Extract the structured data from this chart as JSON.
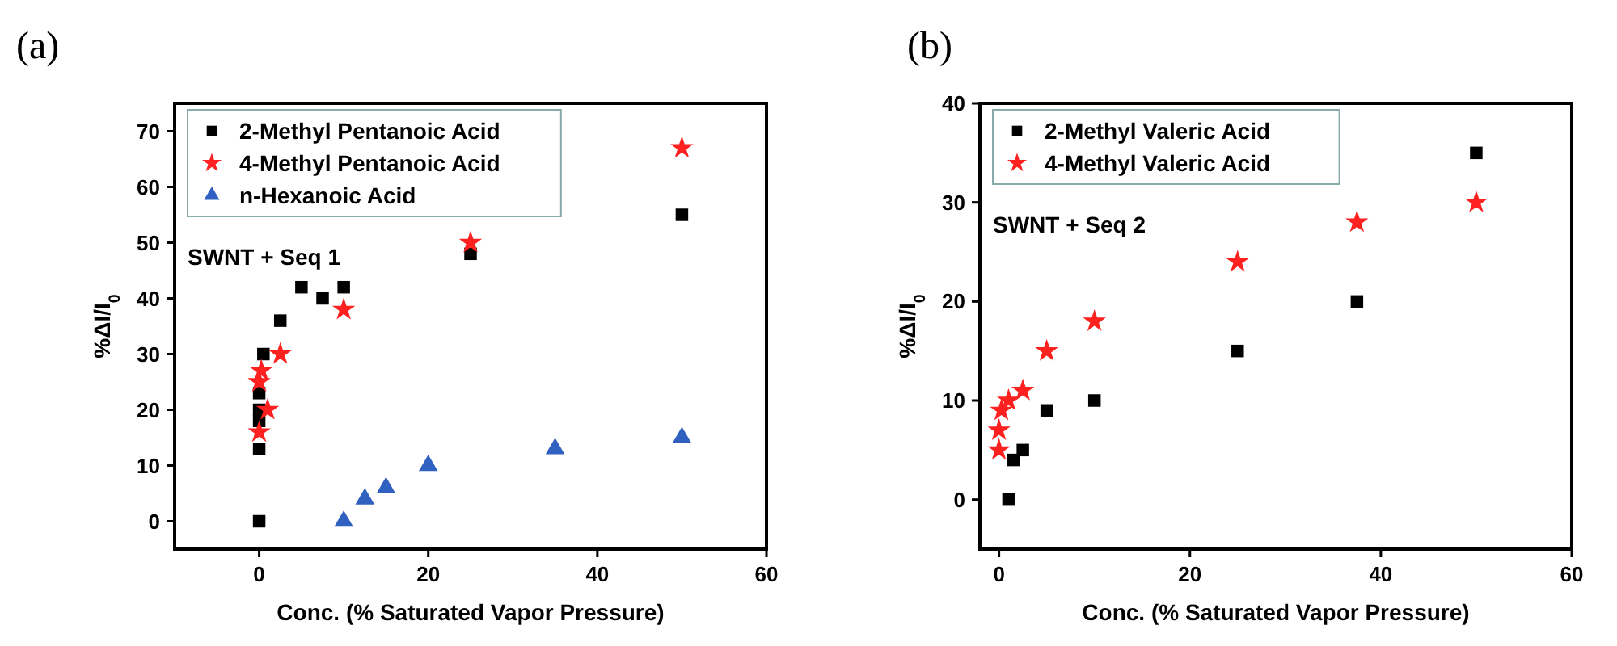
{
  "chart_data": [
    {
      "type": "scatter",
      "title": "(a)",
      "xlabel": "Conc. (% Saturated Vapor Pressure)",
      "ylabel": "%ΔI/I$_{0}$",
      "annotations": [
        "SWNT + Seq 1"
      ],
      "xlim": [
        -10,
        60
      ],
      "ylim": [
        -5,
        75
      ],
      "xticks": [
        0,
        20,
        40,
        60
      ],
      "yticks": [
        0,
        10,
        20,
        30,
        40,
        50,
        60,
        70
      ],
      "legend": "top left",
      "series": [
        {
          "name": "2-Methyl Pentanoic Acid",
          "color": "#000000",
          "marker": "square",
          "x": [
            0,
            0,
            0,
            0,
            0,
            0.5,
            2.5,
            5,
            7.5,
            10,
            25,
            50
          ],
          "values": [
            0,
            13,
            18,
            20,
            23,
            30,
            36,
            42,
            40,
            42,
            48,
            55
          ]
        },
        {
          "name": "4-Methyl Pentanoic Acid",
          "color": "#ff2020",
          "marker": "star",
          "x": [
            0,
            0,
            0.25,
            1,
            2.5,
            10,
            25,
            50
          ],
          "values": [
            16,
            25,
            27,
            20,
            30,
            38,
            50,
            67
          ]
        },
        {
          "name": "n-Hexanoic Acid",
          "color": "#3060c0",
          "marker": "triangle",
          "x": [
            10,
            12.5,
            15,
            20,
            35,
            50
          ],
          "values": [
            0,
            4,
            6,
            10,
            13,
            15
          ]
        }
      ]
    },
    {
      "type": "scatter",
      "title": "(b)",
      "xlabel": "Conc. (% Saturated Vapor Pressure)",
      "ylabel": "%ΔI/I$_{0}$",
      "annotations": [
        "SWNT + Seq 2"
      ],
      "xlim": [
        -2,
        60
      ],
      "ylim": [
        -5,
        40
      ],
      "xticks": [
        0,
        20,
        40,
        60
      ],
      "yticks": [
        0,
        10,
        20,
        30,
        40
      ],
      "legend": "top left",
      "series": [
        {
          "name": "2-Methyl Valeric Acid",
          "color": "#000000",
          "marker": "square",
          "x": [
            1,
            1.5,
            2.5,
            5,
            10,
            25,
            37.5,
            50
          ],
          "values": [
            0,
            4,
            5,
            9,
            10,
            15,
            20,
            35
          ]
        },
        {
          "name": "4-Methyl Valeric Acid",
          "color": "#ff2020",
          "marker": "star",
          "x": [
            0,
            0,
            0.25,
            1,
            2.5,
            5,
            10,
            25,
            37.5,
            50
          ],
          "values": [
            5,
            7,
            9,
            10,
            11,
            15,
            18,
            24,
            28,
            30
          ]
        }
      ]
    }
  ]
}
